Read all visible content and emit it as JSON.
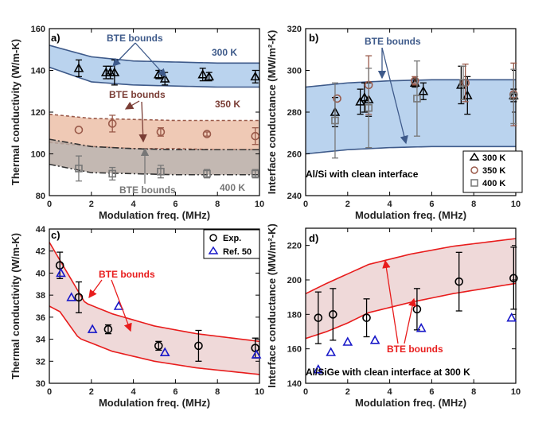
{
  "chart_data": [
    {
      "panel": "a)",
      "type": "scatter",
      "xlabel": "Modulation freq. (MHz)",
      "ylabel": "Thermal conductivity (W/m-K)",
      "xlim": [
        0,
        10
      ],
      "ylim": [
        80,
        160
      ],
      "xticks": [
        0,
        2,
        4,
        6,
        8,
        10
      ],
      "yticks": [
        80,
        100,
        120,
        140,
        160
      ],
      "bands": [
        {
          "name": "300 K",
          "color": "#aecbeb",
          "edge": "#3e5a8a",
          "style": "solid",
          "upper": [
            [
              0,
              152
            ],
            [
              2,
              146.5
            ],
            [
              4,
              144.5
            ],
            [
              6,
              144
            ],
            [
              8,
              143.5
            ],
            [
              10,
              143.5
            ]
          ],
          "lower": [
            [
              0,
              141.5
            ],
            [
              2,
              134.5
            ],
            [
              4,
              133
            ],
            [
              6,
              132.5
            ],
            [
              8,
              132
            ],
            [
              10,
              132
            ]
          ]
        },
        {
          "name": "350 K",
          "color": "#ecc0a8",
          "edge": "#9a5a4a",
          "style": "dashed",
          "upper": [
            [
              0,
              119
            ],
            [
              2,
              117
            ],
            [
              4,
              116.5
            ],
            [
              6,
              116
            ],
            [
              8,
              116
            ],
            [
              10,
              116
            ]
          ],
          "lower": [
            [
              0,
              105.5
            ],
            [
              2,
              103.5
            ],
            [
              4,
              102.5
            ],
            [
              6,
              102.5
            ],
            [
              8,
              102
            ],
            [
              10,
              102
            ]
          ]
        },
        {
          "name": "400 K",
          "color": "#b8aca4",
          "edge": "#333333",
          "style": "dashdot",
          "upper": [
            [
              0,
              107
            ],
            [
              2,
              103.5
            ],
            [
              4,
              102.5
            ],
            [
              6,
              102
            ],
            [
              8,
              102
            ],
            [
              10,
              102
            ]
          ],
          "lower": [
            [
              0,
              95
            ],
            [
              2,
              91
            ],
            [
              4,
              90.5
            ],
            [
              6,
              90
            ],
            [
              8,
              90
            ],
            [
              10,
              90
            ]
          ]
        }
      ],
      "series": [
        {
          "name": "300 K",
          "marker": "triangle",
          "color": "#000000",
          "x": [
            1.4,
            2.7,
            2.9,
            3.1,
            5.2,
            5.5,
            7.3,
            7.6,
            9.8
          ],
          "y": [
            141,
            139,
            139,
            139,
            138,
            136,
            138,
            137,
            137
          ],
          "err": [
            4,
            3,
            3,
            6,
            2,
            3,
            3,
            2,
            3
          ]
        },
        {
          "name": "350 K",
          "marker": "circle",
          "color": "#9a5a4a",
          "x": [
            1.4,
            3.0,
            5.3,
            7.5,
            9.8
          ],
          "y": [
            111.5,
            114.5,
            110.5,
            109.5,
            108.5
          ],
          "err": [
            0,
            4,
            2,
            1,
            4
          ]
        },
        {
          "name": "400 K",
          "marker": "square",
          "color": "#777777",
          "x": [
            1.4,
            3.0,
            5.3,
            7.5,
            9.8
          ],
          "y": [
            93,
            90.5,
            91.5,
            90.5,
            90.5
          ],
          "err": [
            6,
            3,
            3,
            2,
            2
          ]
        }
      ],
      "annotations": [
        "BTE bounds",
        "300 K",
        "BTE bounds",
        "350 K",
        "BTE bounds",
        "400 K"
      ]
    },
    {
      "panel": "b)",
      "type": "scatter",
      "xlabel": "Modulation freq. (MHz)",
      "ylabel": "Interface conductance (MW/m²-K)",
      "xlim": [
        0,
        10
      ],
      "ylim": [
        240,
        320
      ],
      "xticks": [
        0,
        2,
        4,
        6,
        8,
        10
      ],
      "yticks": [
        240,
        260,
        280,
        300,
        320
      ],
      "band": {
        "color": "#aecbeb",
        "edge": "#3e5a8a",
        "upper": [
          [
            0,
            292
          ],
          [
            2,
            294
          ],
          [
            4,
            295
          ],
          [
            6,
            295.5
          ],
          [
            8,
            295.5
          ],
          [
            10,
            295.5
          ]
        ],
        "lower": [
          [
            0,
            260
          ],
          [
            2,
            262
          ],
          [
            4,
            263
          ],
          [
            6,
            263.5
          ],
          [
            8,
            263.5
          ],
          [
            10,
            263.5
          ]
        ]
      },
      "series": [
        {
          "name": "300 K",
          "marker": "triangle",
          "color": "#000000",
          "x": [
            1.4,
            2.6,
            2.8,
            3.0,
            5.2,
            5.6,
            7.4,
            7.7,
            9.9
          ],
          "y": [
            280,
            285,
            287,
            286,
            294,
            290,
            293,
            288,
            288
          ],
          "err": [
            7,
            6,
            7,
            8,
            2,
            4,
            9,
            9,
            3
          ]
        },
        {
          "name": "350 K",
          "marker": "circle",
          "color": "#9a5a4a",
          "x": [
            1.5,
            3.0,
            5.2,
            7.6,
            9.9
          ],
          "y": [
            286.5,
            293,
            295,
            294,
            288.5
          ],
          "err": [
            0,
            14,
            2,
            9,
            15
          ]
        },
        {
          "name": "400 K",
          "marker": "square",
          "color": "#777777",
          "x": [
            1.4,
            3.0,
            5.3,
            7.5,
            9.9
          ],
          "y": [
            276,
            282,
            286.5,
            294,
            287.5
          ],
          "err": [
            18,
            19,
            18,
            8,
            13
          ]
        }
      ],
      "legend": [
        "300 K",
        "350 K",
        "400 K"
      ],
      "annotations": [
        "BTE bounds",
        "Al/Si with clean interface"
      ]
    },
    {
      "panel": "c)",
      "type": "scatter",
      "xlabel": "Modulation freq. (MHz)",
      "ylabel": "Thermal conductivity (W/m-K)",
      "xlim": [
        0,
        10
      ],
      "ylim": [
        30,
        44
      ],
      "xticks": [
        0,
        2,
        4,
        6,
        8,
        10
      ],
      "yticks": [
        30,
        32,
        34,
        36,
        38,
        40,
        42,
        44
      ],
      "band": {
        "color": "#ecd2d2",
        "edge": "#e81c1c",
        "upper": [
          [
            0,
            42.8
          ],
          [
            0.8,
            40.2
          ],
          [
            1.7,
            37.3
          ],
          [
            3,
            36.3
          ],
          [
            5,
            35.2
          ],
          [
            7,
            34.5
          ],
          [
            10,
            33.8
          ]
        ],
        "lower": [
          [
            0,
            37
          ],
          [
            0.5,
            36.5
          ],
          [
            1.4,
            34.1
          ],
          [
            3,
            32.9
          ],
          [
            5,
            32
          ],
          [
            7,
            31.4
          ],
          [
            10,
            30.8
          ]
        ]
      },
      "series": [
        {
          "name": "Exp.",
          "marker": "circle",
          "color": "#000000",
          "x": [
            0.5,
            1.4,
            2.8,
            5.2,
            7.1,
            9.8
          ],
          "y": [
            40.7,
            37.8,
            34.9,
            33.4,
            33.4,
            33.2
          ],
          "err": [
            1.2,
            1.4,
            0.4,
            0.4,
            1.4,
            0.9
          ]
        },
        {
          "name": "Ref. 50",
          "marker": "triangle",
          "color": "#1818c8",
          "x": [
            0.55,
            1.05,
            2.05,
            3.3,
            5.5,
            9.85
          ],
          "y": [
            40.0,
            37.8,
            34.9,
            37.0,
            32.8,
            32.6
          ],
          "err": []
        }
      ],
      "legend": [
        "Exp.",
        "Ref. 50"
      ],
      "annotations": [
        "BTE bounds"
      ]
    },
    {
      "panel": "d)",
      "type": "scatter",
      "xlabel": "Modulation freq. (MHz)",
      "ylabel": "Interface conductance (MW/m²-K)",
      "xlim": [
        0,
        10
      ],
      "ylim": [
        140,
        230
      ],
      "xticks": [
        0,
        2,
        4,
        6,
        8,
        10
      ],
      "yticks": [
        140,
        160,
        180,
        200,
        220
      ],
      "band": {
        "color": "#ecd2d2",
        "edge": "#e81c1c",
        "upper": [
          [
            0,
            192
          ],
          [
            1,
            198
          ],
          [
            2,
            203.5
          ],
          [
            3,
            209
          ],
          [
            5,
            215
          ],
          [
            7,
            219.5
          ],
          [
            10,
            224
          ]
        ],
        "lower": [
          [
            0,
            166
          ],
          [
            1,
            170
          ],
          [
            2,
            175
          ],
          [
            3,
            181
          ],
          [
            5,
            187
          ],
          [
            7,
            192
          ],
          [
            10,
            198
          ]
        ]
      },
      "series": [
        {
          "name": "Exp.",
          "marker": "circle",
          "color": "#000000",
          "x": [
            0.6,
            1.3,
            2.9,
            5.3,
            7.3,
            9.9
          ],
          "y": [
            178,
            180,
            178,
            183,
            199,
            201
          ],
          "err": [
            15,
            15,
            11,
            12,
            17,
            18
          ]
        },
        {
          "name": "Ref. 50",
          "marker": "triangle",
          "color": "#1818c8",
          "x": [
            0.6,
            1.2,
            2.0,
            3.3,
            5.5,
            9.8
          ],
          "y": [
            148,
            158,
            164,
            165,
            172,
            178
          ],
          "err": []
        }
      ],
      "annotations": [
        "BTE bounds",
        "Al/SiGe with clean interface at 300 K"
      ]
    }
  ]
}
